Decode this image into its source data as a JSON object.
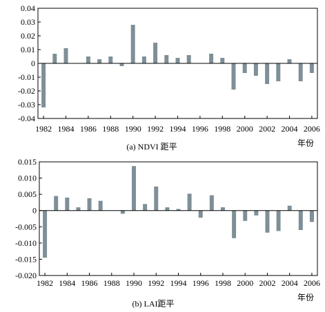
{
  "chart_data": [
    {
      "type": "bar",
      "caption": "(a) NDVI 距平",
      "xlabel": "年份",
      "ylim": [
        -0.04,
        0.04
      ],
      "yticks": [
        -0.04,
        -0.03,
        -0.02,
        -0.01,
        0,
        0.01,
        0.02,
        0.03,
        0.04
      ],
      "ytick_labels": [
        "-0.04",
        "-0.03",
        "-0.02",
        "-0.01",
        "0",
        "0.01",
        "0.02",
        "0.03",
        "0.04"
      ],
      "xticks": [
        "1982",
        "1984",
        "1986",
        "1988",
        "1990",
        "1992",
        "1994",
        "1996",
        "1998",
        "2000",
        "2002",
        "2004",
        "2006"
      ],
      "x": [
        1982,
        1983,
        1984,
        1985,
        1986,
        1987,
        1988,
        1989,
        1990,
        1991,
        1992,
        1993,
        1994,
        1995,
        1996,
        1997,
        1998,
        1999,
        2000,
        2001,
        2002,
        2003,
        2004,
        2005,
        2006
      ],
      "values": [
        -0.032,
        0.007,
        0.011,
        0.0,
        0.005,
        0.003,
        0.005,
        -0.002,
        0.028,
        0.005,
        0.015,
        0.006,
        0.004,
        0.006,
        0.0,
        0.007,
        0.004,
        -0.019,
        -0.007,
        -0.009,
        -0.015,
        -0.013,
        0.003,
        -0.013,
        -0.007
      ],
      "bar_color": "#7f8f97"
    },
    {
      "type": "bar",
      "caption": "(b) LAI距平",
      "xlabel": "年份",
      "ylim": [
        -0.02,
        0.015
      ],
      "yticks": [
        -0.02,
        -0.015,
        -0.01,
        -0.005,
        0,
        0.005,
        0.01,
        0.015
      ],
      "ytick_labels": [
        "-0.020",
        "-0.015",
        "-0.010",
        "-0.005",
        "0",
        "0.005",
        "0.010",
        "0.015"
      ],
      "xticks": [
        "1982",
        "1984",
        "1986",
        "1988",
        "1990",
        "1992",
        "1994",
        "1996",
        "1998",
        "2000",
        "2002",
        "2004",
        "2006"
      ],
      "x": [
        1982,
        1983,
        1984,
        1985,
        1986,
        1987,
        1988,
        1989,
        1990,
        1991,
        1992,
        1993,
        1994,
        1995,
        1996,
        1997,
        1998,
        1999,
        2000,
        2001,
        2002,
        2003,
        2004,
        2005,
        2006
      ],
      "values": [
        -0.0145,
        0.0045,
        0.004,
        0.001,
        0.0038,
        0.003,
        0.0,
        -0.001,
        0.0137,
        0.002,
        0.0074,
        0.001,
        0.0005,
        0.0052,
        -0.0022,
        0.0047,
        0.001,
        -0.0085,
        -0.0032,
        -0.0015,
        -0.0068,
        -0.0063,
        0.0015,
        -0.006,
        -0.0035
      ],
      "bar_color": "#7f8f97"
    }
  ]
}
